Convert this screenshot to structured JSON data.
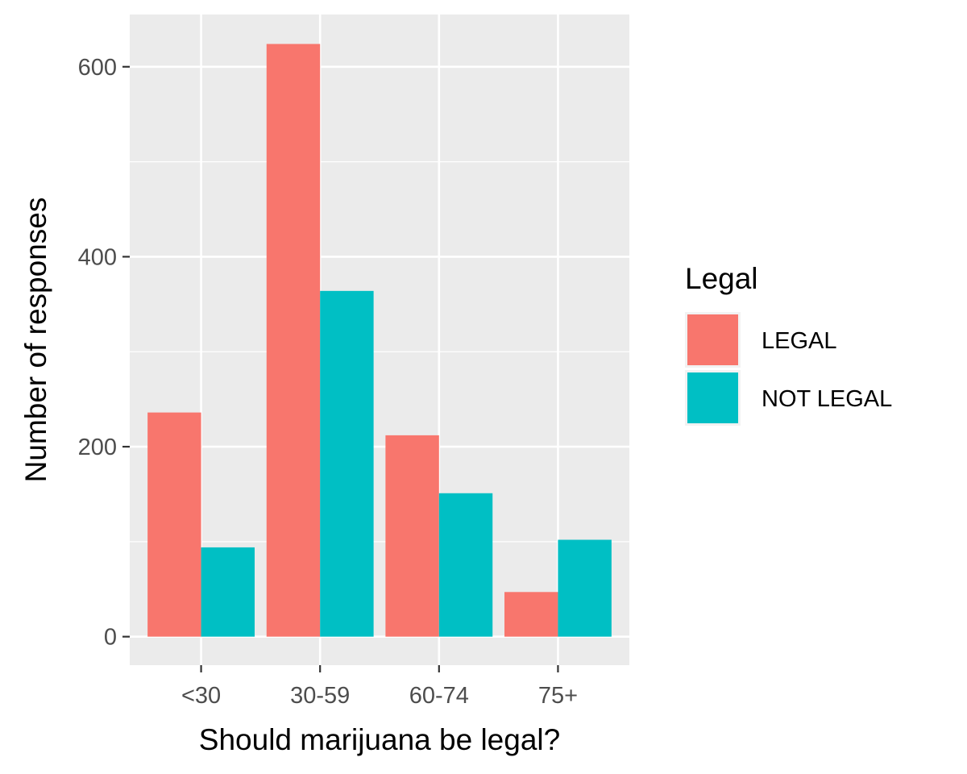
{
  "chart_data": {
    "type": "bar",
    "title": "",
    "xlabel": "Should marijuana be legal?",
    "ylabel": "Number of responses",
    "categories": [
      "<30",
      "30-59",
      "60-74",
      "75+"
    ],
    "series": [
      {
        "name": "LEGAL",
        "color": "#F8766D",
        "values": [
          236,
          624,
          212,
          47
        ]
      },
      {
        "name": "NOT LEGAL",
        "color": "#00BFC4",
        "values": [
          94,
          364,
          151,
          102
        ]
      }
    ],
    "ylim": [
      -30,
      655
    ],
    "yticks": [
      0,
      200,
      400,
      600
    ],
    "ytick_labels": [
      "0",
      "200",
      "400",
      "600"
    ],
    "grid": true,
    "legend": {
      "title": "Legal",
      "position": "right"
    },
    "panel_color": "#EBEBEB"
  }
}
